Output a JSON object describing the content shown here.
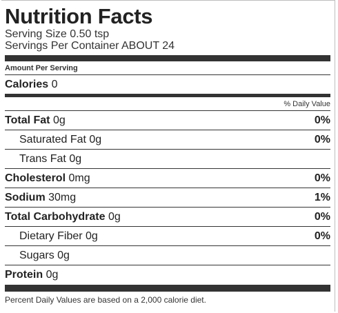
{
  "title": "Nutrition Facts",
  "serving_size": "Serving Size 0.50 tsp",
  "servings_per_container": "Servings Per Container ABOUT 24",
  "amount_per_serving": "Amount Per Serving",
  "calories": {
    "label": "Calories",
    "value": "0"
  },
  "daily_value_header": "% Daily Value",
  "nutrients": [
    {
      "label": "Total Fat",
      "amount": "0g",
      "pct": "0%"
    },
    {
      "label": "Saturated Fat",
      "amount": "0g",
      "pct": "0%"
    },
    {
      "label": "Trans Fat",
      "amount": "0g",
      "pct": ""
    },
    {
      "label": "Cholesterol",
      "amount": "0mg",
      "pct": "0%"
    },
    {
      "label": "Sodium",
      "amount": "30mg",
      "pct": "1%"
    },
    {
      "label": "Total Carbohydrate",
      "amount": "0g",
      "pct": "0%"
    },
    {
      "label": "Dietary Fiber",
      "amount": "0g",
      "pct": "0%"
    },
    {
      "label": "Sugars",
      "amount": "0g",
      "pct": ""
    },
    {
      "label": "Protein",
      "amount": "0g",
      "pct": ""
    }
  ],
  "footnote": "Percent Daily Values are based on a 2,000 calorie diet."
}
